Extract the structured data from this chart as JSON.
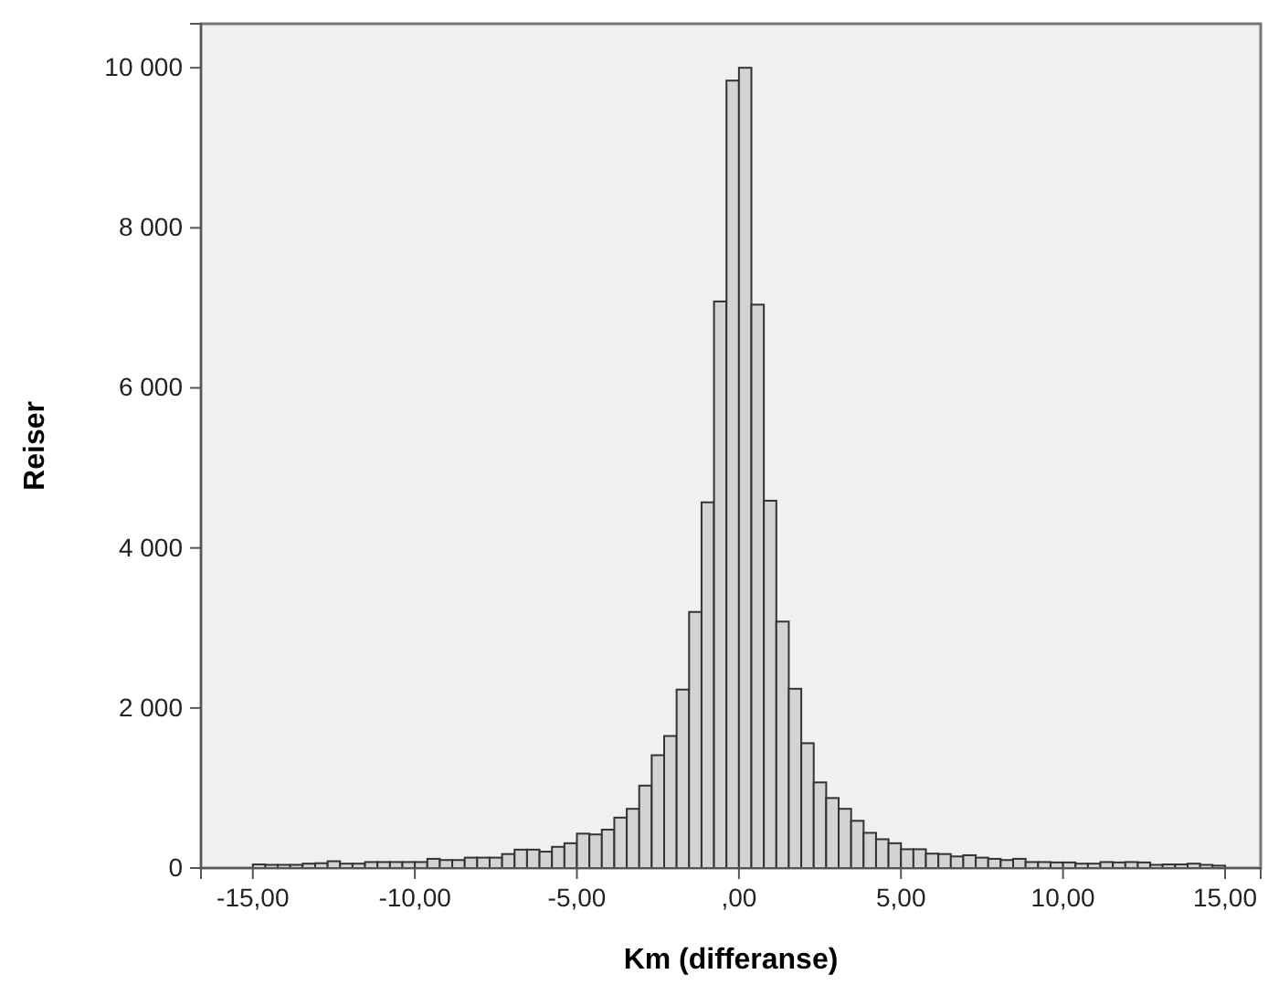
{
  "chart_data": {
    "type": "histogram",
    "xlabel": "Km (differanse)",
    "ylabel": "Reiser",
    "color": "#d3d3d3",
    "bins": [
      -15,
      -14.6154,
      -14.2308,
      -13.8462,
      -13.4615,
      -13.0769,
      -12.6923,
      -12.3077,
      -11.9231,
      -11.5385,
      -11.1538,
      -10.7692,
      -10.3846,
      -10,
      -9.6154,
      -9.2308,
      -8.8462,
      -8.4615,
      -8.0769,
      -7.6923,
      -7.3077,
      -6.9231,
      -6.5385,
      -6.1538,
      -5.7692,
      -5.3846,
      -5,
      -4.6154,
      -4.2308,
      -3.8462,
      -3.4615,
      -3.0769,
      -2.6923,
      -2.3077,
      -1.9231,
      -1.5385,
      -1.1538,
      -0.7692,
      -0.3846,
      0,
      0.3846,
      0.7692,
      1.1538,
      1.5385,
      1.9231,
      2.3077,
      2.6923,
      3.0769,
      3.4615,
      3.8462,
      4.2308,
      4.6154,
      5,
      5.3846,
      5.7692,
      6.1538,
      6.5385,
      6.9231,
      7.3077,
      7.6923,
      8.0769,
      8.4615,
      8.8462,
      9.2308,
      9.6154,
      10,
      10.3846,
      10.7692,
      11.1538,
      11.5385,
      11.9231,
      12.3077,
      12.6923,
      13.0769,
      13.4615,
      13.8462,
      14.2308,
      14.6154,
      15
    ],
    "values": [
      45,
      40,
      40,
      40,
      55,
      60,
      85,
      55,
      55,
      75,
      75,
      75,
      75,
      75,
      115,
      100,
      100,
      130,
      130,
      130,
      175,
      230,
      230,
      205,
      265,
      310,
      430,
      420,
      480,
      630,
      740,
      1030,
      1410,
      1650,
      2230,
      3200,
      4570,
      7080,
      9840,
      10000,
      7040,
      4590,
      3080,
      2240,
      1560,
      1070,
      875,
      740,
      590,
      440,
      360,
      310,
      235,
      235,
      180,
      175,
      145,
      160,
      130,
      115,
      100,
      115,
      75,
      75,
      70,
      70,
      55,
      55,
      75,
      70,
      75,
      70,
      40,
      45,
      45,
      55,
      40,
      30
    ],
    "xlim": [
      -16.6,
      16.1
    ],
    "ylim": [
      0,
      10550
    ],
    "xticks": [
      {
        "value": -15,
        "label": "-15,00"
      },
      {
        "value": -10,
        "label": "-10,00"
      },
      {
        "value": -5,
        "label": "-5,00"
      },
      {
        "value": 0,
        "label": ",00"
      },
      {
        "value": 5,
        "label": "5,00"
      },
      {
        "value": 10,
        "label": "10,00"
      },
      {
        "value": 15,
        "label": "15,00"
      }
    ],
    "yticks": [
      0,
      {
        "value": 2000,
        "label": "2 000"
      },
      {
        "value": 4000,
        "label": "4 000"
      },
      {
        "value": 6000,
        "label": "6 000"
      },
      {
        "value": 8000,
        "label": "8 000"
      },
      {
        "value": 10000,
        "label": "10 000"
      }
    ],
    "grid": false
  }
}
